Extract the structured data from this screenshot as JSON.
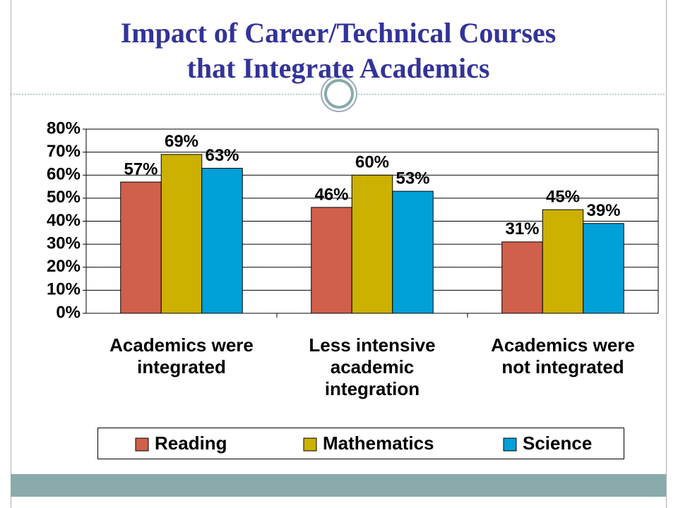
{
  "chart_data": {
    "type": "bar",
    "title": "Impact of Career/Technical Courses\nthat Integrate Academics",
    "categories": [
      "Academics were\nintegrated",
      "Less intensive\nacademic\nintegration",
      "Academics were\nnot integrated"
    ],
    "series": [
      {
        "name": "Reading",
        "color": "#d0604b",
        "values": [
          57,
          46,
          31
        ],
        "value_labels": [
          "57%",
          "46%",
          "31%"
        ]
      },
      {
        "name": "Mathematics",
        "color": "#ccb100",
        "values": [
          69,
          60,
          45
        ],
        "value_labels": [
          "69%",
          "60%",
          "45%"
        ]
      },
      {
        "name": "Science",
        "color": "#00a0d8",
        "values": [
          63,
          53,
          39
        ],
        "value_labels": [
          "63%",
          "53%",
          "39%"
        ]
      }
    ],
    "ylim": [
      0,
      80
    ],
    "yticks": [
      {
        "value": 0,
        "label": "0%"
      },
      {
        "value": 10,
        "label": "10%"
      },
      {
        "value": 20,
        "label": "20%"
      },
      {
        "value": 30,
        "label": "30%"
      },
      {
        "value": 40,
        "label": "40%"
      },
      {
        "value": 50,
        "label": "50%"
      },
      {
        "value": 60,
        "label": "60%"
      },
      {
        "value": 70,
        "label": "70%"
      },
      {
        "value": 80,
        "label": "80%"
      }
    ],
    "grid": true,
    "legend": "bottom"
  }
}
